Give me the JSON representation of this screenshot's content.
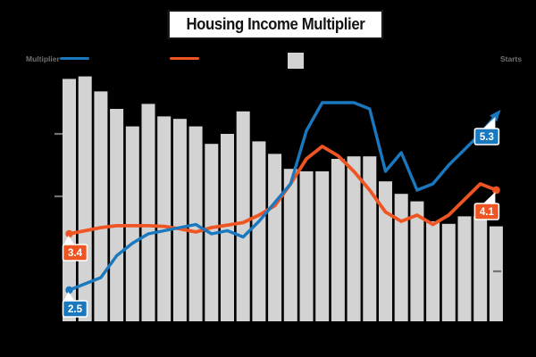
{
  "title": "Housing Income Multiplier",
  "legend": {
    "multiplier_label": "Multiplier",
    "right_label": "Starts"
  },
  "colors": {
    "background": "#000000",
    "bars": "#d3d3d3",
    "multiplier_line": "#1a78bf",
    "trend_line": "#ef5423",
    "legend_text": "#6e7072",
    "tick": "#6f7276",
    "title_bg": "#ffffff",
    "title_text": "#131313",
    "callout_text": "#ffffff"
  },
  "chart_data": {
    "type": "combo",
    "title": "Housing Income Multiplier",
    "n_points": 28,
    "series": [
      {
        "name": "Multiplier",
        "type": "line",
        "color": "#1a78bf",
        "start_label": "2.5",
        "end_label": "5.3",
        "end_marker": "arrow",
        "values": [
          2.5,
          2.6,
          2.7,
          3.05,
          3.25,
          3.4,
          3.45,
          3.5,
          3.55,
          3.4,
          3.45,
          3.35,
          3.6,
          3.9,
          4.2,
          5.05,
          5.5,
          5.5,
          5.5,
          5.4,
          4.4,
          4.7,
          4.1,
          4.2,
          4.5,
          4.75,
          5.0,
          5.3
        ]
      },
      {
        "name": "",
        "type": "line",
        "color": "#ef5423",
        "start_label": "3.4",
        "end_label": "4.1",
        "end_marker": "dot",
        "values": [
          3.4,
          3.45,
          3.5,
          3.53,
          3.53,
          3.53,
          3.52,
          3.48,
          3.43,
          3.5,
          3.54,
          3.58,
          3.7,
          3.85,
          4.2,
          4.6,
          4.8,
          4.65,
          4.4,
          4.1,
          3.75,
          3.6,
          3.7,
          3.55,
          3.7,
          3.95,
          4.2,
          4.1
        ]
      },
      {
        "name": "",
        "type": "bar",
        "color": "#d3d3d3",
        "values_pct_of_plot_height": [
          97,
          98,
          92,
          85,
          78,
          87,
          82,
          81,
          78,
          71,
          75,
          84,
          72,
          67,
          61,
          60,
          60,
          65,
          66,
          66,
          56,
          51,
          48,
          40,
          39,
          42,
          42,
          38
        ]
      }
    ],
    "left_axis": {
      "min": 2,
      "max": 6,
      "tick_marks_at_values": [
        4,
        5
      ],
      "labels_visible": false
    },
    "right_axis": {
      "tick_marks_at_pct": [
        20
      ],
      "labels_visible": false
    },
    "x_axis": {
      "labels_visible": false
    },
    "legend_position": "top",
    "grid": false,
    "annotations": [
      {
        "text": "3.4",
        "series": "trend",
        "color": "#ef5423",
        "point_index": 0,
        "value": 3.4,
        "placement": "below"
      },
      {
        "text": "2.5",
        "series": "multiplier",
        "color": "#1a78bf",
        "point_index": 0,
        "value": 2.5,
        "placement": "below"
      },
      {
        "text": "5.3",
        "series": "multiplier",
        "color": "#1a78bf",
        "point_index": 27,
        "value": 5.3,
        "placement": "below-left"
      },
      {
        "text": "4.1",
        "series": "trend",
        "color": "#ef5423",
        "point_index": 27,
        "value": 4.1,
        "placement": "below-left"
      }
    ]
  }
}
